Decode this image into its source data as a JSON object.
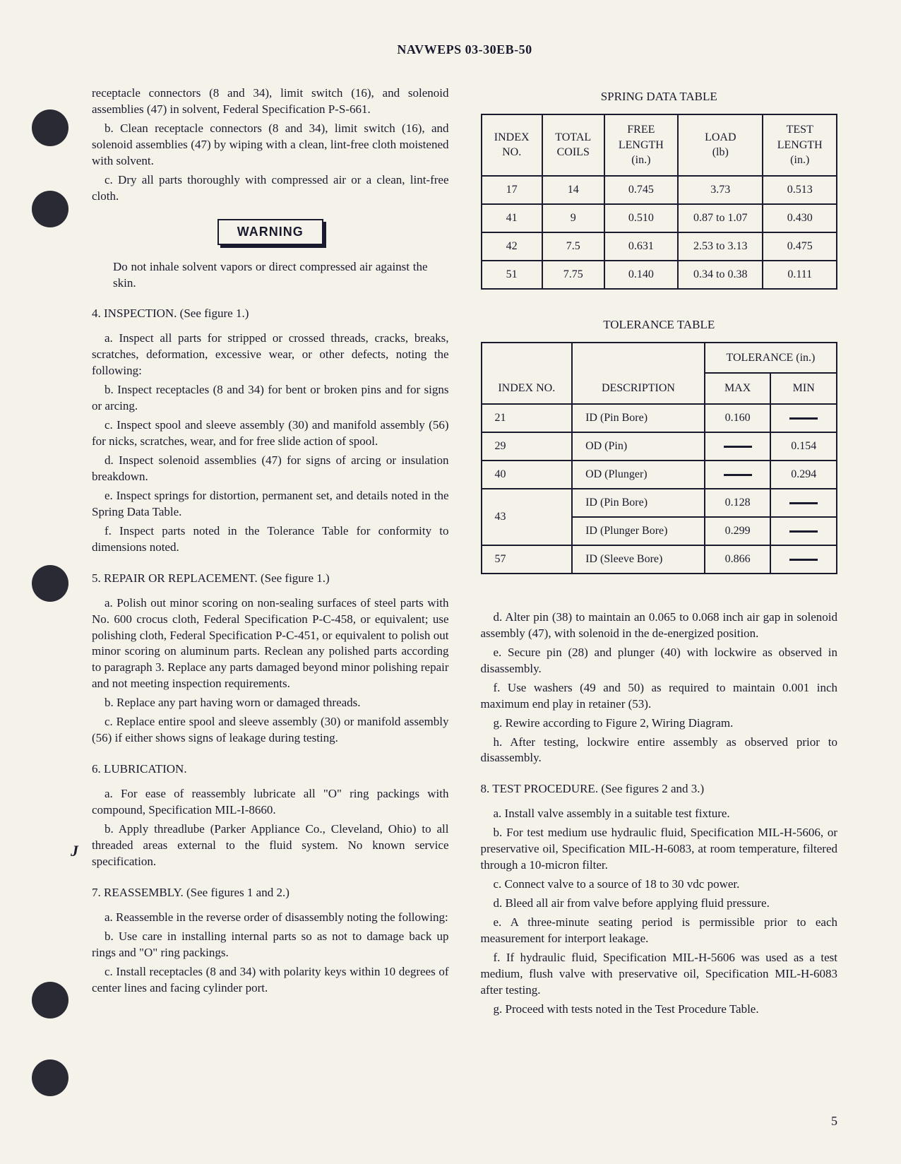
{
  "header": "NAVWEPS 03-30EB-50",
  "page_number": "5",
  "left_column": {
    "intro_lines": [
      "receptacle connectors (8 and 34), limit switch (16), and solenoid assemblies (47) in solvent, Federal Specification P-S-661.",
      "b. Clean receptacle connectors (8 and 34), limit switch (16), and solenoid assemblies (47) by wiping with a clean, lint-free cloth moistened with solvent.",
      "c. Dry all parts thoroughly with compressed air or a clean, lint-free cloth."
    ],
    "warning_label": "WARNING",
    "warning_text": "Do not inhale solvent vapors or direct compressed air against the skin.",
    "sections": [
      {
        "heading": "4. INSPECTION. (See figure 1.)",
        "items": [
          "a. Inspect all parts for stripped or crossed threads, cracks, breaks, scratches, deformation, excessive wear, or other defects, noting the following:",
          "b. Inspect receptacles (8 and 34) for bent or broken pins and for signs or arcing.",
          "c. Inspect spool and sleeve assembly (30) and manifold assembly (56) for nicks, scratches, wear, and for free slide action of spool.",
          "d. Inspect solenoid assemblies (47) for signs of arcing or insulation breakdown.",
          "e. Inspect springs for distortion, permanent set, and details noted in the Spring Data Table.",
          "f. Inspect parts noted in the Tolerance Table for conformity to dimensions noted."
        ]
      },
      {
        "heading": "5. REPAIR OR REPLACEMENT. (See figure 1.)",
        "items": [
          "a. Polish out minor scoring on non-sealing surfaces of steel parts with No. 600 crocus cloth, Federal Specification P-C-458, or equivalent; use polishing cloth, Federal Specification P-C-451, or equivalent to polish out minor scoring on aluminum parts. Reclean any polished parts according to paragraph 3. Replace any parts damaged beyond minor polishing repair and not meeting inspection requirements.",
          "b. Replace any part having worn or damaged threads.",
          "c. Replace entire spool and sleeve assembly (30) or manifold assembly (56) if either shows signs of leakage during testing."
        ]
      },
      {
        "heading": "6. LUBRICATION.",
        "items": [
          "a. For ease of reassembly lubricate all \"O\" ring packings with compound, Specification MIL-I-8660.",
          "b. Apply threadlube (Parker Appliance Co., Cleveland, Ohio) to all threaded areas external to the fluid system. No known service specification."
        ]
      },
      {
        "heading": "7. REASSEMBLY. (See figures 1 and 2.)",
        "items": [
          "a. Reassemble in the reverse order of disassembly noting the following:",
          "b. Use care in installing internal parts so as not to damage back up rings and \"O\" ring packings.",
          "c. Install receptacles (8 and 34) with polarity keys within 10 degrees of center lines and facing cylinder port."
        ]
      }
    ]
  },
  "right_column": {
    "spring_table": {
      "title": "SPRING DATA TABLE",
      "headers": [
        "INDEX\nNO.",
        "TOTAL\nCOILS",
        "FREE\nLENGTH\n(in.)",
        "LOAD\n(lb)",
        "TEST\nLENGTH\n(in.)"
      ],
      "rows": [
        [
          "17",
          "14",
          "0.745",
          "3.73",
          "0.513"
        ],
        [
          "41",
          "9",
          "0.510",
          "0.87 to 1.07",
          "0.430"
        ],
        [
          "42",
          "7.5",
          "0.631",
          "2.53 to 3.13",
          "0.475"
        ],
        [
          "51",
          "7.75",
          "0.140",
          "0.34 to 0.38",
          "0.111"
        ]
      ]
    },
    "tolerance_table": {
      "title": "TOLERANCE TABLE",
      "col_index": "INDEX\nNO.",
      "col_desc": "DESCRIPTION",
      "col_tol": "TOLERANCE\n(in.)",
      "col_max": "MAX",
      "col_min": "MIN",
      "rows": [
        {
          "idx": "21",
          "desc": "ID (Pin Bore)",
          "max": "0.160",
          "min": "—"
        },
        {
          "idx": "29",
          "desc": "OD (Pin)",
          "max": "—",
          "min": "0.154"
        },
        {
          "idx": "40",
          "desc": "OD (Plunger)",
          "max": "—",
          "min": "0.294"
        },
        {
          "idx": "43",
          "desc": "ID (Pin Bore)",
          "max": "0.128",
          "min": "—",
          "rowspan": 2
        },
        {
          "idx": "",
          "desc": "ID (Plunger Bore)",
          "max": "0.299",
          "min": "—"
        },
        {
          "idx": "57",
          "desc": "ID (Sleeve Bore)",
          "max": "0.866",
          "min": "—"
        }
      ]
    },
    "continued_items": [
      "d. Alter pin (38) to maintain an 0.065 to 0.068 inch air gap in solenoid assembly (47), with solenoid in the de-energized position.",
      "e. Secure pin (28) and plunger (40) with lockwire as observed in disassembly.",
      "f. Use washers (49 and 50) as required to maintain 0.001 inch maximum end play in retainer (53).",
      "g. Rewire according to Figure 2, Wiring Diagram.",
      "h. After testing, lockwire entire assembly as observed prior to disassembly."
    ],
    "section8": {
      "heading": "8. TEST PROCEDURE. (See figures 2 and 3.)",
      "items": [
        "a. Install valve assembly in a suitable test fixture.",
        "b. For test medium use hydraulic fluid, Specification MIL-H-5606, or preservative oil, Specification MIL-H-6083, at room temperature, filtered through a 10-micron filter.",
        "c. Connect valve to a source of 18 to 30 vdc power.",
        "d. Bleed all air from valve before applying fluid pressure.",
        "e. A three-minute seating period is permissible prior to each measurement for interport leakage.",
        "f. If hydraulic fluid, Specification MIL-H-5606 was used as a test medium, flush valve with preservative oil, Specification MIL-H-6083 after testing.",
        "g. Proceed with tests noted in the Test Procedure Table."
      ]
    }
  },
  "styling": {
    "background_color": "#f5f2ea",
    "text_color": "#1a1a2e",
    "hole_color": "#2a2a35",
    "body_font_size": 17,
    "table_font_size": 16,
    "table_border_width": 2.5
  },
  "punch_hole_positions": [
    155,
    270,
    800,
    1390,
    1500
  ]
}
